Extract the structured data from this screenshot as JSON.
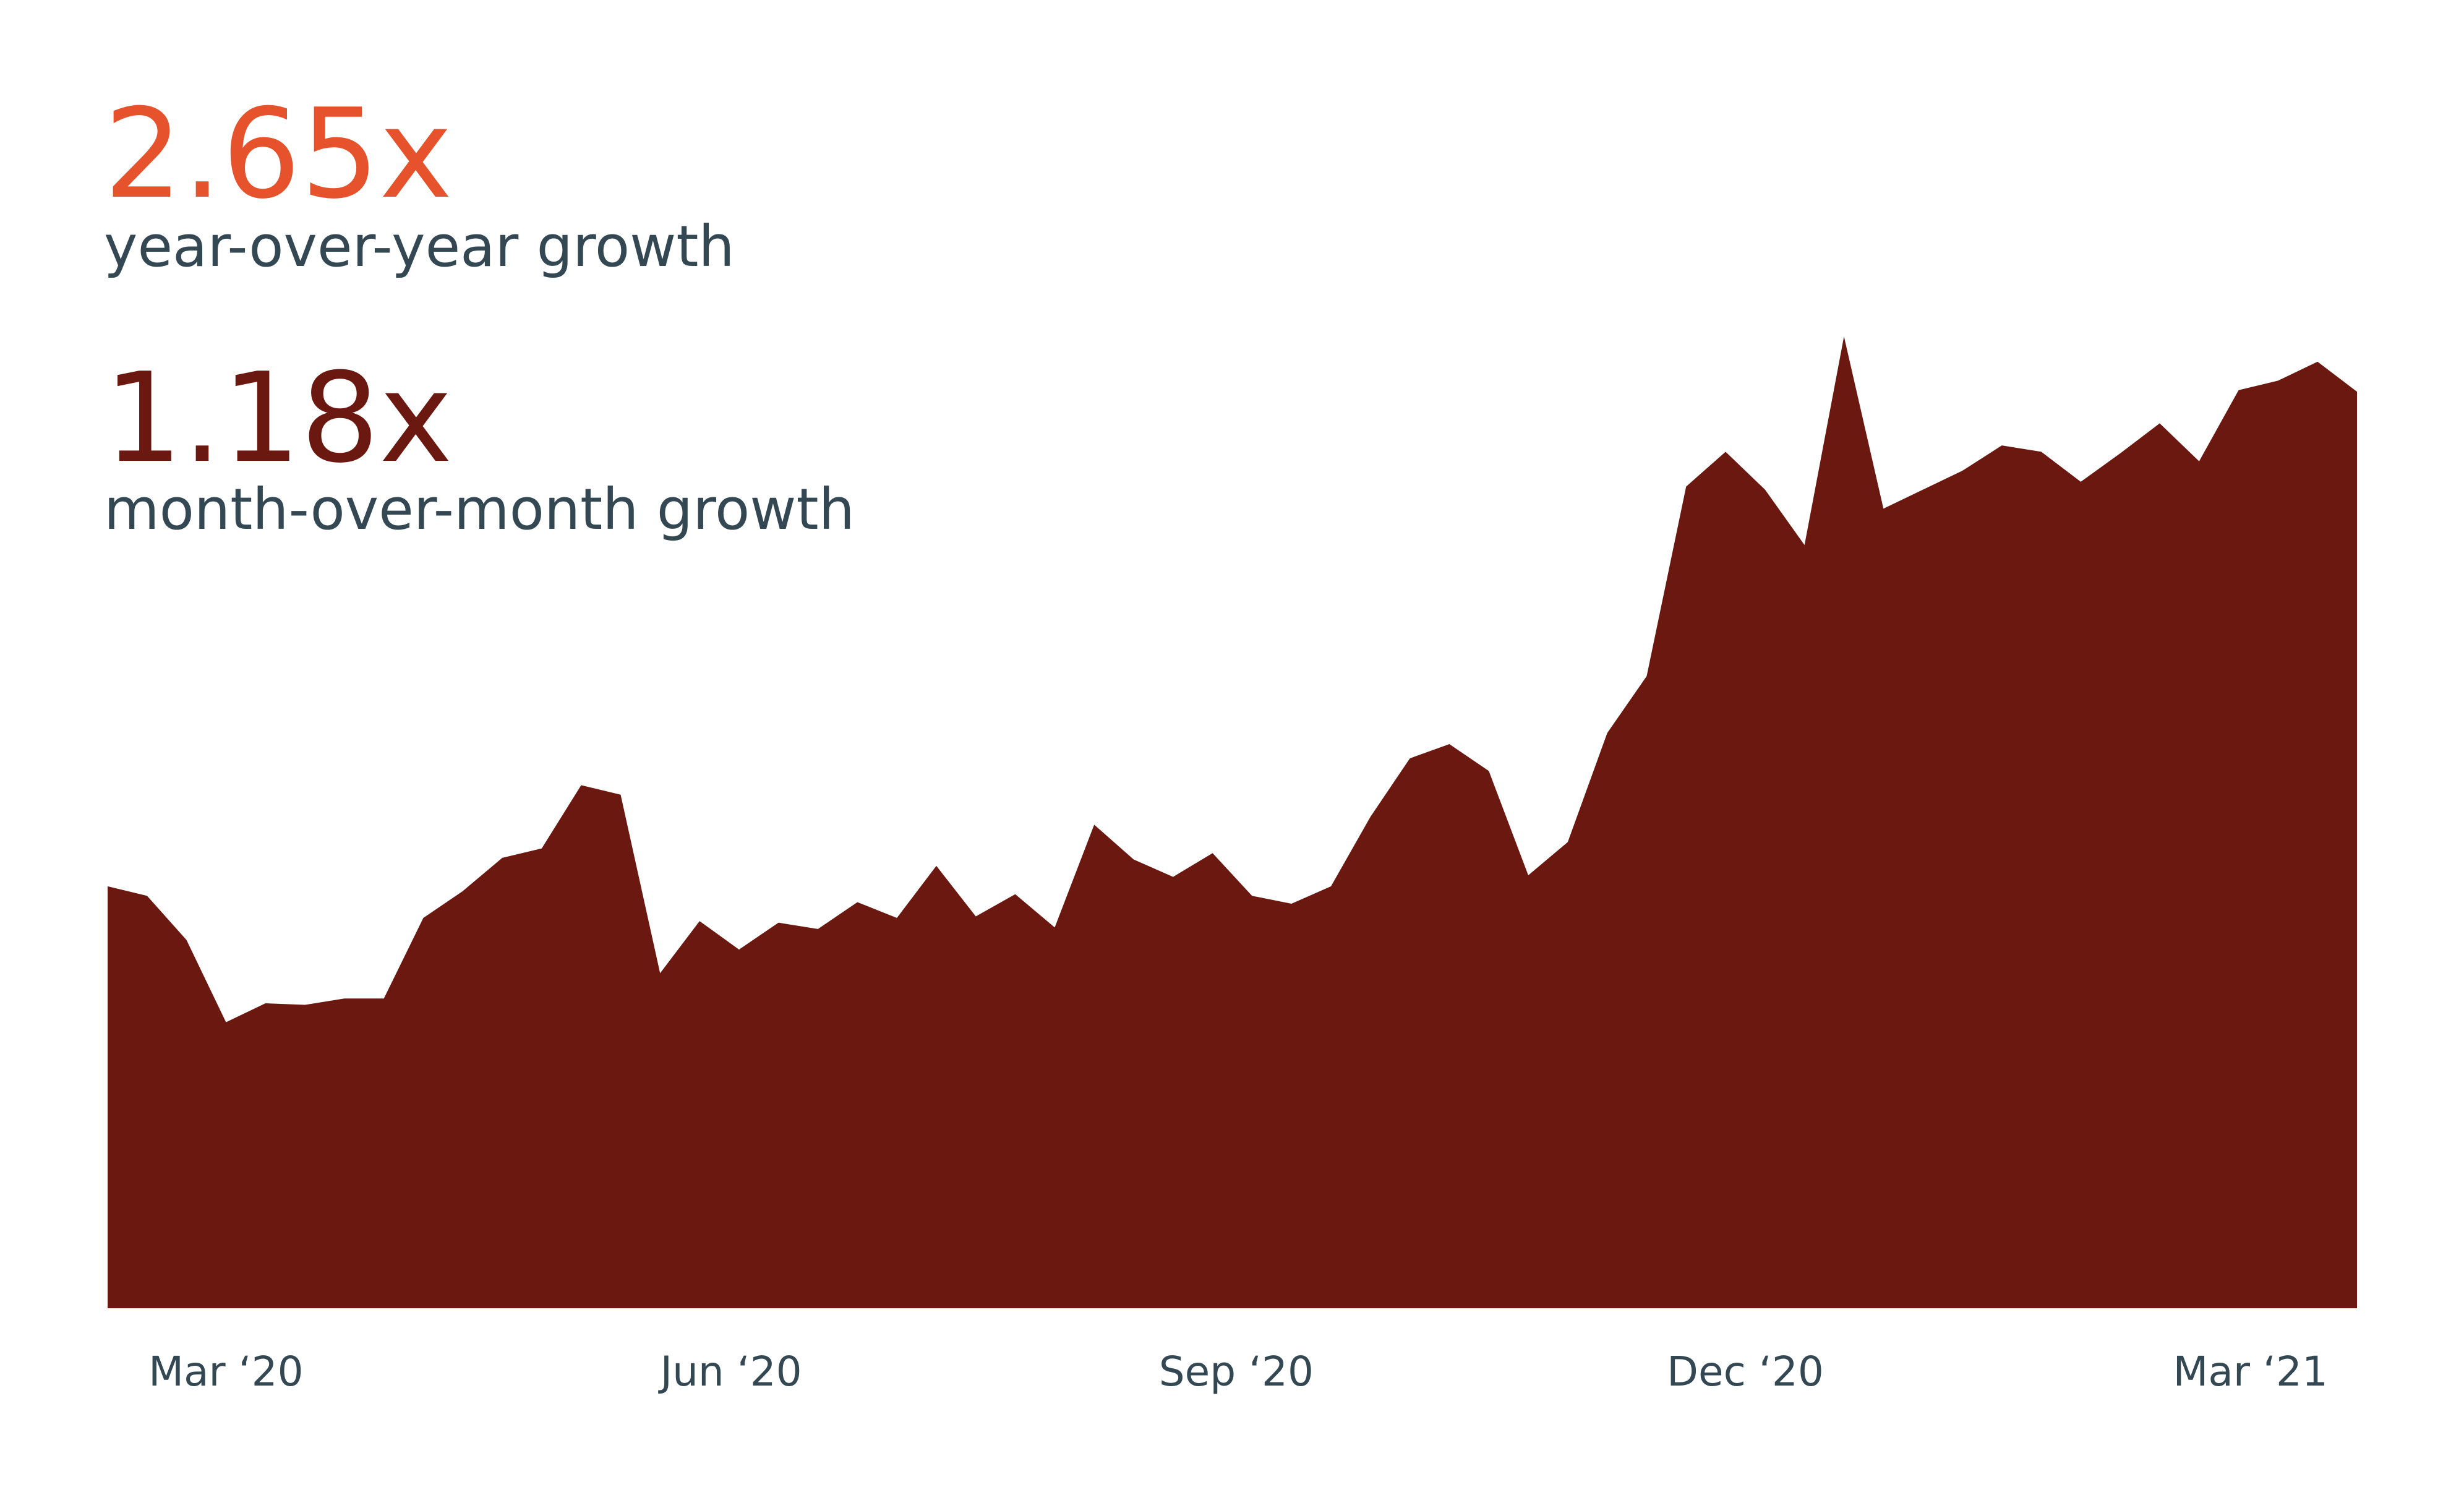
{
  "chart_data": {
    "type": "area",
    "stats": [
      {
        "value_text": "2.65x",
        "label": "year-over-year growth",
        "color": "#e6522c"
      },
      {
        "value_text": "1.18x",
        "label": "month-over-month growth",
        "color": "#6b1910"
      }
    ],
    "x": [
      0,
      1,
      2,
      3,
      4,
      5,
      6,
      7,
      8,
      9,
      10,
      11,
      12,
      13,
      14,
      15,
      16,
      17,
      18,
      19,
      20,
      21,
      22,
      23,
      24,
      25,
      26,
      27,
      28,
      29,
      30,
      31,
      32,
      33,
      34,
      35,
      36,
      37,
      38,
      39,
      40,
      41,
      42,
      43,
      44,
      45,
      46,
      47,
      48,
      49,
      50,
      51,
      52,
      53,
      54,
      55,
      56,
      57
    ],
    "values": [
      267,
      261,
      233,
      181,
      193,
      192,
      196,
      196,
      247,
      264,
      285,
      291,
      331,
      325,
      212,
      245,
      227,
      244,
      240,
      257,
      247,
      280,
      248,
      262,
      241,
      306,
      284,
      273,
      288,
      261,
      256,
      267,
      311,
      348,
      357,
      340,
      274,
      295,
      364,
      400,
      520,
      542,
      518,
      483,
      615,
      506,
      518,
      530,
      546,
      542,
      523,
      541,
      560,
      536,
      581,
      587,
      599,
      580
    ],
    "color": "#6b1910",
    "xlim": [
      0,
      57
    ],
    "ylim": [
      0,
      640
    ],
    "xticks": [
      {
        "value": 3,
        "label": "Mar ‘20"
      },
      {
        "value": 15.8,
        "label": "Jun ‘20"
      },
      {
        "value": 28.6,
        "label": "Sep ‘20"
      },
      {
        "value": 41.5,
        "label": "Dec ‘20"
      },
      {
        "value": 54.3,
        "label": "Mar ‘21"
      }
    ]
  }
}
